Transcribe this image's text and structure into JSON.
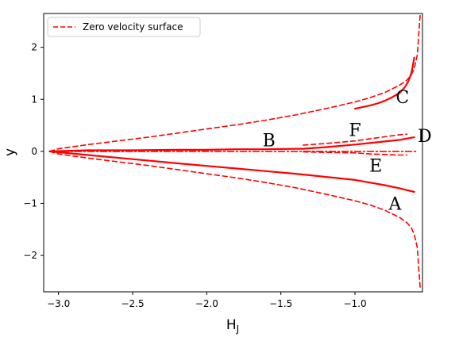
{
  "chart_data": {
    "type": "line",
    "xlabel": "H_J",
    "ylabel": "y",
    "xlim": [
      -3.1,
      -0.545
    ],
    "ylim": [
      -2.7,
      2.65
    ],
    "xticks": [
      -3.0,
      -2.5,
      -2.0,
      -1.5,
      -1.0
    ],
    "xtick_labels": [
      "−3.0",
      "−2.5",
      "−2.0",
      "−1.5",
      "−1.0"
    ],
    "yticks": [
      2,
      1,
      0,
      -1,
      -2
    ],
    "ytick_labels": [
      "2",
      "1",
      "0",
      "−1",
      "−2"
    ],
    "grid": false,
    "legend": {
      "placement": "top-left",
      "entries": [
        {
          "name": "Zero velocity surface",
          "color": "#ff0000",
          "style": "dashed"
        }
      ]
    },
    "color": "#ff0000",
    "series": [
      {
        "id": "zvs-upper",
        "name": "Zero velocity surface",
        "style": "dashed",
        "x": [
          -3.06,
          -3.0,
          -2.8,
          -2.6,
          -2.4,
          -2.2,
          -2.0,
          -1.8,
          -1.6,
          -1.4,
          -1.2,
          -1.0,
          -0.9,
          -0.8,
          -0.7,
          -0.65,
          -0.62,
          -0.6,
          -0.58,
          -0.56
        ],
        "y": [
          0.0,
          0.05,
          0.13,
          0.2,
          0.27,
          0.35,
          0.43,
          0.51,
          0.6,
          0.7,
          0.82,
          0.95,
          1.03,
          1.13,
          1.27,
          1.37,
          1.47,
          1.6,
          1.85,
          2.65
        ]
      },
      {
        "id": "zvs-lower",
        "style": "dashed",
        "x": [
          -3.06,
          -3.0,
          -2.8,
          -2.6,
          -2.4,
          -2.2,
          -2.0,
          -1.8,
          -1.6,
          -1.4,
          -1.2,
          -1.0,
          -0.9,
          -0.8,
          -0.7,
          -0.65,
          -0.62,
          -0.6,
          -0.58,
          -0.56
        ],
        "y": [
          0.0,
          -0.05,
          -0.13,
          -0.2,
          -0.27,
          -0.35,
          -0.43,
          -0.51,
          -0.6,
          -0.7,
          -0.82,
          -0.95,
          -1.03,
          -1.13,
          -1.27,
          -1.37,
          -1.47,
          -1.6,
          -1.85,
          -2.65
        ]
      },
      {
        "id": "curve-A",
        "style": "solid",
        "x": [
          -3.06,
          -2.8,
          -2.5,
          -2.2,
          -2.0,
          -1.8,
          -1.6,
          -1.4,
          -1.2,
          -1.0,
          -0.9,
          -0.8,
          -0.7,
          -0.6
        ],
        "y": [
          0.0,
          -0.07,
          -0.15,
          -0.23,
          -0.28,
          -0.33,
          -0.38,
          -0.43,
          -0.49,
          -0.55,
          -0.6,
          -0.65,
          -0.71,
          -0.78
        ]
      },
      {
        "id": "curve-B",
        "style": "solid",
        "x": [
          -3.06,
          -2.8,
          -2.5,
          -2.2,
          -2.0,
          -1.8,
          -1.6,
          -1.4,
          -1.35
        ],
        "y": [
          0.0,
          0.02,
          0.02,
          0.03,
          0.03,
          0.04,
          0.04,
          0.05,
          0.05
        ]
      },
      {
        "id": "curve-C",
        "style": "solid",
        "x": [
          -1.0,
          -0.95,
          -0.9,
          -0.85,
          -0.8,
          -0.75,
          -0.7,
          -0.68,
          -0.66,
          -0.64,
          -0.62,
          -0.6
        ],
        "y": [
          0.82,
          0.85,
          0.88,
          0.92,
          0.97,
          1.04,
          1.12,
          1.18,
          1.25,
          1.35,
          1.5,
          1.8
        ]
      },
      {
        "id": "curve-D",
        "style": "solid",
        "x": [
          -1.35,
          -1.2,
          -1.0,
          -0.9,
          -0.8,
          -0.7,
          -0.6
        ],
        "y": [
          0.05,
          0.08,
          0.13,
          0.16,
          0.19,
          0.22,
          0.27
        ]
      },
      {
        "id": "curve-E",
        "style": "dashed",
        "x": [
          -1.35,
          -1.2,
          -1.0,
          -0.9,
          -0.8,
          -0.7,
          -0.65
        ],
        "y": [
          -0.01,
          -0.02,
          -0.03,
          -0.05,
          -0.06,
          -0.07,
          -0.07
        ]
      },
      {
        "id": "curve-F",
        "style": "dashed",
        "x": [
          -1.35,
          -1.2,
          -1.0,
          -0.9,
          -0.8,
          -0.7,
          -0.65
        ],
        "y": [
          0.12,
          0.15,
          0.2,
          0.24,
          0.28,
          0.32,
          0.33
        ]
      },
      {
        "id": "x-axis-line",
        "style": "dashdot",
        "x": [
          -3.06,
          -0.58
        ],
        "y": [
          0.0,
          0.0
        ]
      }
    ],
    "annotations": [
      {
        "text": "A",
        "x": -0.73,
        "y": -1.0
      },
      {
        "text": "B",
        "x": -1.58,
        "y": 0.22
      },
      {
        "text": "C",
        "x": -0.68,
        "y": 1.05
      },
      {
        "text": "D",
        "x": -0.53,
        "y": 0.3
      },
      {
        "text": "E",
        "x": -0.86,
        "y": -0.27
      },
      {
        "text": "F",
        "x": -1.0,
        "y": 0.42
      }
    ]
  }
}
